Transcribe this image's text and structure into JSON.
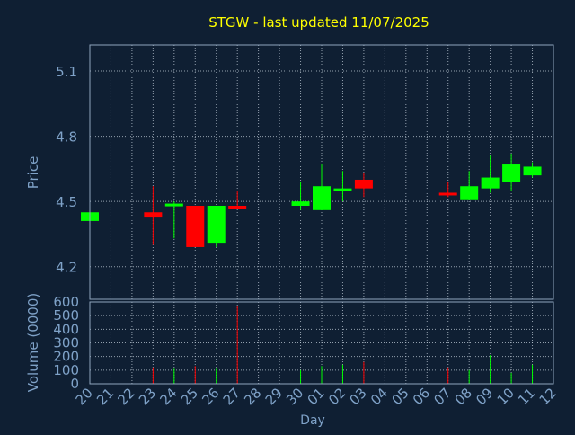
{
  "chart_data": {
    "type": "candlestick",
    "title": "STGW - last updated 11/07/2025",
    "xlabel": "Day",
    "colors": {
      "background": "#0f1f33",
      "title": "#ffff00",
      "axis_text": "#7fa2c8",
      "frame": "#8fa4bd",
      "grid": "#c0ccd8",
      "up": "#00ff00",
      "down": "#ff0000",
      "wick": "#00ff00"
    },
    "x_tick_labels": [
      "20",
      "21",
      "22",
      "23",
      "24",
      "25",
      "26",
      "27",
      "28",
      "29",
      "30",
      "01",
      "02",
      "03",
      "04",
      "05",
      "06",
      "07",
      "08",
      "09",
      "10",
      "11",
      "12"
    ],
    "price_panel": {
      "ylabel": "Price",
      "ylim": [
        4.05,
        5.22
      ],
      "yticks": [
        4.2,
        4.5,
        4.8,
        5.1
      ],
      "ytick_labels": [
        "4.2",
        "4.5",
        "4.8",
        "5.1"
      ]
    },
    "volume_panel": {
      "ylabel": "Volume (0000)",
      "ylim": [
        0,
        600
      ],
      "yticks": [
        0,
        100,
        200,
        300,
        400,
        500,
        600
      ],
      "ytick_labels": [
        "0",
        "100",
        "200",
        "300",
        "400",
        "500",
        "600"
      ]
    },
    "candles": [
      {
        "day": "20",
        "open": 4.41,
        "close": 4.45,
        "high": 4.45,
        "low": 4.41
      },
      {
        "day": "23",
        "open": 4.45,
        "close": 4.43,
        "high": 4.57,
        "low": 4.3
      },
      {
        "day": "24",
        "open": 4.48,
        "close": 4.49,
        "high": 4.5,
        "low": 4.33
      },
      {
        "day": "25",
        "open": 4.48,
        "close": 4.29,
        "high": 4.48,
        "low": 4.29
      },
      {
        "day": "26",
        "open": 4.31,
        "close": 4.48,
        "high": 4.48,
        "low": 4.29
      },
      {
        "day": "27",
        "open": 4.48,
        "close": 4.47,
        "high": 4.55,
        "low": 4.47
      },
      {
        "day": "30",
        "open": 4.48,
        "close": 4.5,
        "high": 4.59,
        "low": 4.46
      },
      {
        "day": "01",
        "open": 4.46,
        "close": 4.57,
        "high": 4.67,
        "low": 4.46
      },
      {
        "day": "02",
        "open": 4.55,
        "close": 4.56,
        "high": 4.64,
        "low": 4.5
      },
      {
        "day": "03",
        "open": 4.6,
        "close": 4.56,
        "high": 4.63,
        "low": 4.52
      },
      {
        "day": "07",
        "open": 4.54,
        "close": 4.53,
        "high": 4.59,
        "low": 4.52
      },
      {
        "day": "08",
        "open": 4.51,
        "close": 4.57,
        "high": 4.64,
        "low": 4.51
      },
      {
        "day": "09",
        "open": 4.56,
        "close": 4.61,
        "high": 4.71,
        "low": 4.54
      },
      {
        "day": "10",
        "open": 4.59,
        "close": 4.67,
        "high": 4.72,
        "low": 4.55
      },
      {
        "day": "11",
        "open": 4.62,
        "close": 4.66,
        "high": 4.68,
        "low": 4.61
      }
    ],
    "volume": [
      {
        "day": "23",
        "value": 120,
        "direction": "down"
      },
      {
        "day": "24",
        "value": 110,
        "direction": "up"
      },
      {
        "day": "25",
        "value": 130,
        "direction": "down"
      },
      {
        "day": "26",
        "value": 110,
        "direction": "up"
      },
      {
        "day": "27",
        "value": 570,
        "direction": "down"
      },
      {
        "day": "30",
        "value": 100,
        "direction": "up"
      },
      {
        "day": "01",
        "value": 130,
        "direction": "up"
      },
      {
        "day": "02",
        "value": 140,
        "direction": "up"
      },
      {
        "day": "03",
        "value": 160,
        "direction": "down"
      },
      {
        "day": "07",
        "value": 120,
        "direction": "down"
      },
      {
        "day": "08",
        "value": 100,
        "direction": "up"
      },
      {
        "day": "09",
        "value": 210,
        "direction": "up"
      },
      {
        "day": "10",
        "value": 80,
        "direction": "up"
      },
      {
        "day": "11",
        "value": 140,
        "direction": "up"
      }
    ]
  }
}
